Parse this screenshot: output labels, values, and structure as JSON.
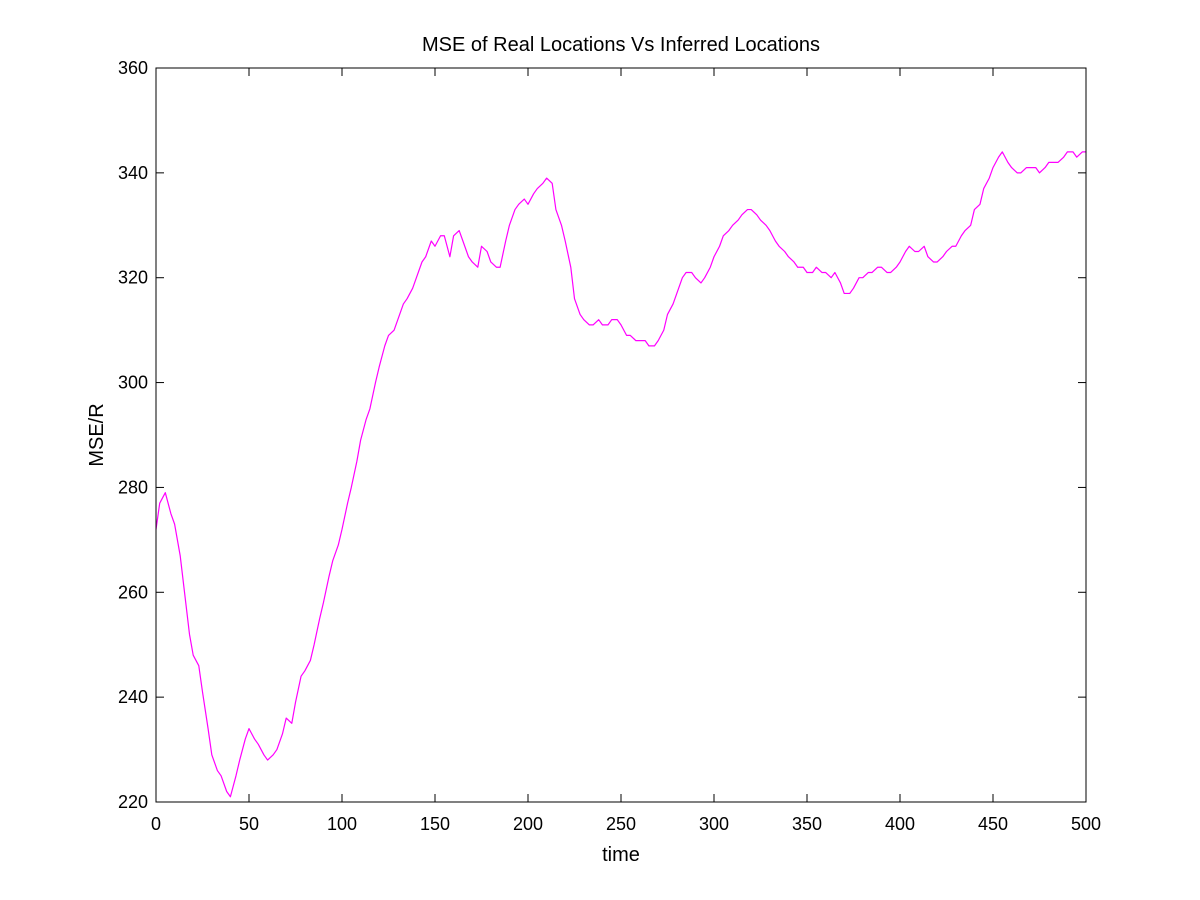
{
  "chart_data": {
    "type": "line",
    "title": "MSE of Real Locations Vs Inferred Locations",
    "xlabel": "time",
    "ylabel": "MSE/R",
    "xlim": [
      0,
      500
    ],
    "ylim": [
      220,
      360
    ],
    "xticks": [
      0,
      50,
      100,
      150,
      200,
      250,
      300,
      350,
      400,
      450,
      500
    ],
    "yticks": [
      220,
      240,
      260,
      280,
      300,
      320,
      340,
      360
    ],
    "grid": false,
    "legend": "none",
    "series": [
      {
        "color": "#ff00ff",
        "x": [
          0,
          2,
          5,
          8,
          10,
          13,
          15,
          18,
          20,
          23,
          25,
          28,
          30,
          33,
          35,
          38,
          40,
          43,
          45,
          48,
          50,
          53,
          55,
          58,
          60,
          63,
          65,
          68,
          70,
          73,
          75,
          78,
          80,
          83,
          85,
          88,
          90,
          93,
          95,
          98,
          100,
          103,
          105,
          108,
          110,
          113,
          115,
          118,
          120,
          123,
          125,
          128,
          130,
          133,
          135,
          138,
          140,
          143,
          145,
          148,
          150,
          153,
          155,
          158,
          160,
          163,
          165,
          168,
          170,
          173,
          175,
          178,
          180,
          183,
          185,
          188,
          190,
          193,
          195,
          198,
          200,
          203,
          205,
          208,
          210,
          213,
          215,
          218,
          220,
          223,
          225,
          228,
          230,
          233,
          235,
          238,
          240,
          243,
          245,
          248,
          250,
          253,
          255,
          258,
          260,
          263,
          265,
          268,
          270,
          273,
          275,
          278,
          280,
          283,
          285,
          288,
          290,
          293,
          295,
          298,
          300,
          303,
          305,
          308,
          310,
          313,
          315,
          318,
          320,
          323,
          325,
          328,
          330,
          333,
          335,
          338,
          340,
          343,
          345,
          348,
          350,
          353,
          355,
          358,
          360,
          363,
          365,
          368,
          370,
          373,
          375,
          378,
          380,
          383,
          385,
          388,
          390,
          393,
          395,
          398,
          400,
          403,
          405,
          408,
          410,
          413,
          415,
          418,
          420,
          423,
          425,
          428,
          430,
          433,
          435,
          438,
          440,
          443,
          445,
          448,
          450,
          453,
          455,
          458,
          460,
          463,
          465,
          468,
          470,
          473,
          475,
          478,
          480,
          483,
          485,
          488,
          490,
          493,
          495,
          498,
          500
        ],
        "y": [
          272,
          277,
          279,
          275,
          273,
          267,
          261,
          252,
          248,
          246,
          241,
          234,
          229,
          226,
          225,
          222,
          221,
          225,
          228,
          232,
          234,
          232,
          231,
          229,
          228,
          229,
          230,
          233,
          236,
          235,
          239,
          244,
          245,
          247,
          250,
          255,
          258,
          263,
          266,
          269,
          272,
          277,
          280,
          285,
          289,
          293,
          295,
          300,
          303,
          307,
          309,
          310,
          312,
          315,
          316,
          318,
          320,
          323,
          324,
          327,
          326,
          328,
          328,
          324,
          328,
          329,
          327,
          324,
          323,
          322,
          326,
          325,
          323,
          322,
          322,
          327,
          330,
          333,
          334,
          335,
          334,
          336,
          337,
          338,
          339,
          338,
          333,
          330,
          327,
          322,
          316,
          313,
          312,
          311,
          311,
          312,
          311,
          311,
          312,
          312,
          311,
          309,
          309,
          308,
          308,
          308,
          307,
          307,
          308,
          310,
          313,
          315,
          317,
          320,
          321,
          321,
          320,
          319,
          320,
          322,
          324,
          326,
          328,
          329,
          330,
          331,
          332,
          333,
          333,
          332,
          331,
          330,
          329,
          327,
          326,
          325,
          324,
          323,
          322,
          322,
          321,
          321,
          322,
          321,
          321,
          320,
          321,
          319,
          317,
          317,
          318,
          320,
          320,
          321,
          321,
          322,
          322,
          321,
          321,
          322,
          323,
          325,
          326,
          325,
          325,
          326,
          324,
          323,
          323,
          324,
          325,
          326,
          326,
          328,
          329,
          330,
          333,
          334,
          337,
          339,
          341,
          343,
          344,
          342,
          341,
          340,
          340,
          341,
          341,
          341,
          340,
          341,
          342,
          342,
          342,
          343,
          344,
          344,
          343,
          344,
          344
        ]
      }
    ]
  }
}
